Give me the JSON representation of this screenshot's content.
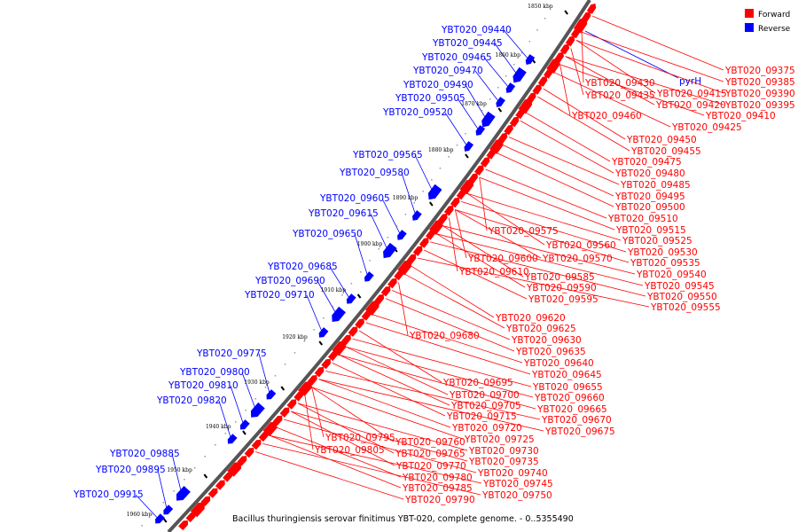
{
  "caption": "Bacillus thuringiensis serovar finitimus YBT-020, complete genome. - 0..5355490",
  "legend": [
    {
      "label": "Forward",
      "color": "#ff0000"
    },
    {
      "label": "Reverse",
      "color": "#0000ff"
    }
  ],
  "colors": {
    "forward": "#ff0000",
    "reverse": "#0000ff",
    "backbone": "#555555"
  },
  "ticks": [
    "1850 kbp",
    "1860 kbp",
    "1870 kbp",
    "1880 kbp",
    "1890 kbp",
    "1900 kbp",
    "1910 kbp",
    "1920 kbp",
    "1930 kbp",
    "1940 kbp",
    "1950 kbp",
    "1960 kbp"
  ],
  "reverse_genes": [
    "YBT020_09440",
    "YBT020_09445",
    "YBT020_09465",
    "YBT020_09470",
    "YBT020_09490",
    "YBT020_09505",
    "YBT020_09520",
    "YBT020_09565",
    "YBT020_09580",
    "YBT020_09605",
    "YBT020_09615",
    "YBT020_09650",
    "YBT020_09685",
    "YBT020_09690",
    "YBT020_09710",
    "YBT020_09775",
    "YBT020_09800",
    "YBT020_09810",
    "YBT020_09820",
    "YBT020_09885",
    "YBT020_09895",
    "YBT020_09915"
  ],
  "pyrH_label": "pyrH",
  "forward_genes": [
    "YBT020_09375",
    "YBT020_09385",
    "YBT020_09390",
    "YBT020_09395",
    "YBT020_09410",
    "YBT020_09415",
    "YBT020_09420",
    "YBT020_09425",
    "YBT020_09430",
    "YBT020_09435",
    "YBT020_09460",
    "YBT020_09450",
    "YBT020_09455",
    "YBT020_09475",
    "YBT020_09480",
    "YBT020_09485",
    "YBT020_09495",
    "YBT020_09500",
    "YBT020_09510",
    "YBT020_09515",
    "YBT020_09525",
    "YBT020_09530",
    "YBT020_09535",
    "YBT020_09540",
    "YBT020_09545",
    "YBT020_09550",
    "YBT020_09555",
    "YBT020_09575",
    "YBT020_09560",
    "YBT020_09570",
    "YBT020_09600",
    "YBT020_09610",
    "YBT020_09585",
    "YBT020_09590",
    "YBT020_09595",
    "YBT020_09620",
    "YBT020_09625",
    "YBT020_09630",
    "YBT020_09635",
    "YBT020_09640",
    "YBT020_09680",
    "YBT020_09645",
    "YBT020_09655",
    "YBT020_09660",
    "YBT020_09665",
    "YBT020_09670",
    "YBT020_09675",
    "YBT020_09695",
    "YBT020_09700",
    "YBT020_09705",
    "YBT020_09715",
    "YBT020_09720",
    "YBT020_09725",
    "YBT020_09730",
    "YBT020_09735",
    "YBT020_09740",
    "YBT020_09745",
    "YBT020_09750",
    "YBT020_09795",
    "YBT020_09805",
    "YBT020_09760",
    "YBT020_09765",
    "YBT020_09770",
    "YBT020_09780",
    "YBT020_09785",
    "YBT020_09790"
  ]
}
